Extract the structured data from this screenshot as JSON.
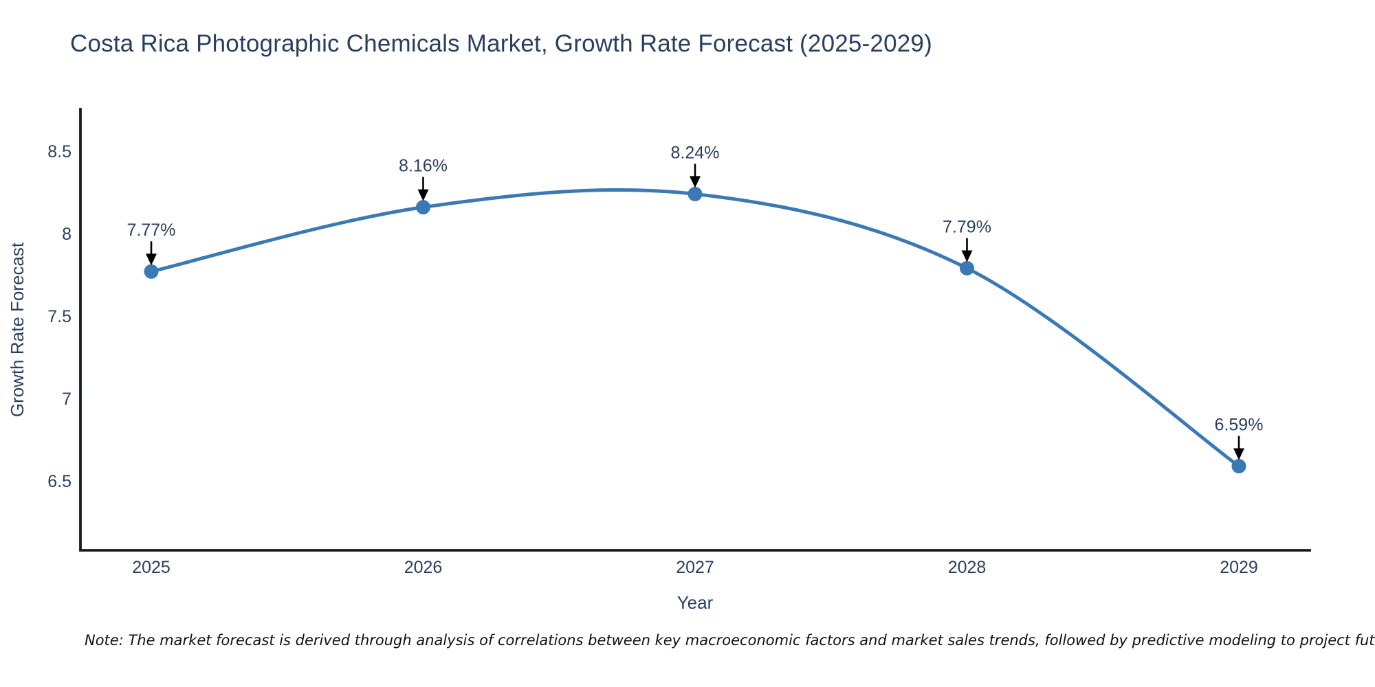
{
  "title": "Costa Rica Photographic Chemicals Market, Growth Rate Forecast (2025-2029)",
  "note": "Note: The market forecast is derived through analysis of correlations between key macroeconomic factors and market sales trends, followed by predictive modeling to project future sales",
  "colors": {
    "line": "#3b79b4",
    "marker": "#3b79b4",
    "title_text": "#2a3f5f",
    "axis_text": "#2a3f5f",
    "axis_line": "#161b22",
    "annotation_arrow": "#000000",
    "background": "#ffffff"
  },
  "chart_data": {
    "type": "line",
    "title": "Costa Rica Photographic Chemicals Market, Growth Rate Forecast (2025-2029)",
    "xlabel": "Year",
    "ylabel": "Growth Rate Forecast",
    "categories": [
      "2025",
      "2026",
      "2027",
      "2028",
      "2029"
    ],
    "values": [
      7.77,
      8.16,
      8.24,
      7.79,
      6.59
    ],
    "point_labels": [
      "7.77%",
      "8.16%",
      "8.24%",
      "7.79%",
      "6.59%"
    ],
    "y_ticks": [
      8.5,
      8,
      7.5,
      7,
      6.5
    ],
    "y_tick_labels": [
      "8.5",
      "8",
      "7.5",
      "7",
      "6.5"
    ],
    "ylim": [
      6.08,
      8.754
    ],
    "line_shape": "spline",
    "grid": false,
    "legend": false,
    "annotations": "value labels with downward arrows above each point"
  }
}
